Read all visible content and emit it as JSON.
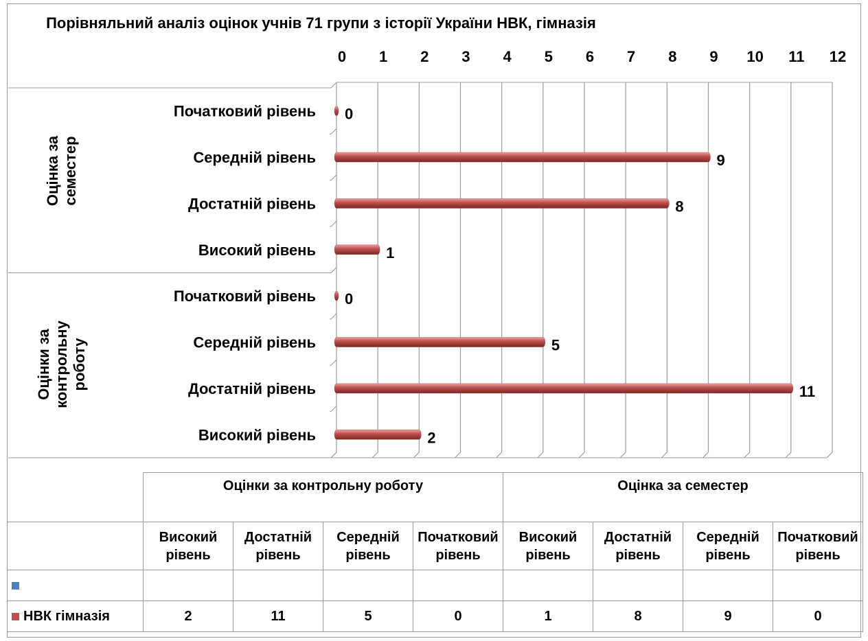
{
  "chart_data": {
    "type": "bar",
    "orientation": "horizontal",
    "title": "Порівняльний аналіз оцінок учнів 71 групи з історії України НВК, гімназія",
    "groups": [
      "Оцінки за контрольну роботу",
      "Оцінка за семестер"
    ],
    "categories": [
      "Високий рівень",
      "Достатній рівень",
      "Середній рівень",
      "Початковий рівень",
      "Високий рівень",
      "Достатній рівень",
      "Середній рівень",
      "Початковий рівень"
    ],
    "series": [
      {
        "color": "#4f81bd",
        "values": [
          null,
          null,
          null,
          null,
          null,
          null,
          null,
          null
        ]
      },
      {
        "name": "НВК гімназія",
        "color": "#c0504d",
        "values": [
          2,
          11,
          5,
          0,
          1,
          8,
          9,
          0
        ]
      }
    ],
    "xlim": [
      0,
      12
    ],
    "xticks": [
      0,
      1,
      2,
      3,
      4,
      5,
      6,
      7,
      8,
      9,
      10,
      11,
      12
    ],
    "grid": true,
    "data_labels": true,
    "data_table": true
  }
}
